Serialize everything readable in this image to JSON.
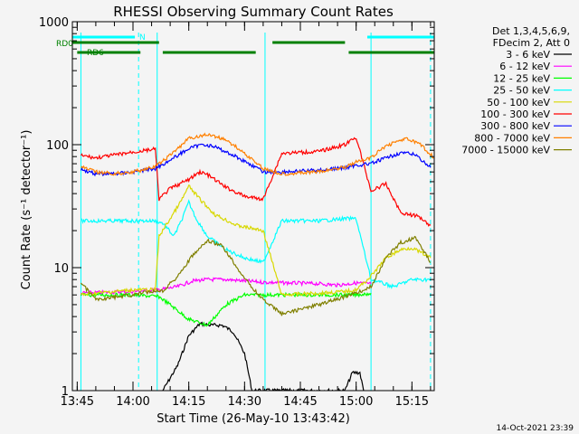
{
  "chart_data": {
    "type": "line",
    "title": "RHESSI Observing Summary Count Rates",
    "xlabel": "Start Time (26-May-10 13:43:42)",
    "ylabel": "Count Rate (s⁻¹ detector⁻¹)",
    "y_scale": "log",
    "ylim": [
      1,
      1000
    ],
    "xlim": [
      "13:43:42",
      "15:21:00"
    ],
    "x_ticks": [
      "13:45",
      "14:00",
      "14:15",
      "14:30",
      "14:45",
      "15:00",
      "15:15"
    ],
    "y_ticks": [
      "1",
      "10",
      "100",
      "1000"
    ],
    "legend_header": [
      "Det 1,3,4,5,6,9,",
      "FDecim 2, Att 0"
    ],
    "legend_position": "right",
    "footer_date": "14-Oct-2021 23:39",
    "flags": [
      {
        "label": "N",
        "color": "#00ffff",
        "segments": [
          [
            "13:43:42",
            "14:00:30"
          ],
          [
            "15:03:00",
            "15:21:00"
          ]
        ]
      },
      {
        "label": "RD0",
        "color": "#008000",
        "segments": [
          [
            "13:43:42",
            "14:07:00"
          ],
          [
            "14:37:30",
            "14:57:00"
          ]
        ]
      },
      {
        "label": "RD6",
        "color": "#008000",
        "segments": [
          [
            "13:45:00",
            "14:02:00"
          ],
          [
            "14:08:00",
            "14:33:00"
          ],
          [
            "14:58:00",
            "15:21:00"
          ]
        ]
      }
    ],
    "vertical_markers": {
      "solid": [
        "13:46:00",
        "14:06:30",
        "14:35:30",
        "15:04:00"
      ],
      "dashed": [
        "14:01:30",
        "15:20:00"
      ]
    },
    "series": [
      {
        "name": "3 - 6 keV",
        "color": "#000000",
        "x": [
          "14:08",
          "14:12",
          "14:15",
          "14:18",
          "14:21",
          "14:24",
          "14:27",
          "14:30",
          "14:32",
          "14:57",
          "14:59",
          "15:01",
          "15:02"
        ],
        "y": [
          1,
          1.6,
          2.8,
          3.5,
          3.4,
          3.4,
          3.0,
          2.0,
          1,
          1,
          1.4,
          1.4,
          1
        ]
      },
      {
        "name": "6 - 12 keV",
        "color": "#ff00ff",
        "x": [
          "13:46",
          "14:00",
          "14:07",
          "14:12",
          "14:16",
          "14:20",
          "14:25",
          "14:30",
          "14:35",
          "14:50",
          "14:55",
          "15:00",
          "15:04"
        ],
        "y": [
          6.2,
          6.4,
          6.6,
          7.0,
          7.8,
          8.0,
          8.0,
          7.8,
          7.6,
          7.4,
          7.2,
          7.5,
          7.4
        ]
      },
      {
        "name": "12 - 25 keV",
        "color": "#00ff00",
        "x": [
          "13:46",
          "14:00",
          "14:07",
          "14:10",
          "14:15",
          "14:20",
          "14:25",
          "14:30",
          "14:35",
          "14:45",
          "14:55",
          "15:00",
          "15:04"
        ],
        "y": [
          6.0,
          6.0,
          5.8,
          5.0,
          3.8,
          3.4,
          5.0,
          6.0,
          6.0,
          6.0,
          6.0,
          6.0,
          6.2
        ]
      },
      {
        "name": "25 - 50 keV",
        "color": "#00ffff",
        "x": [
          "13:46",
          "13:50",
          "14:00",
          "14:06",
          "14:08",
          "14:11",
          "14:13",
          "14:15",
          "14:17",
          "14:20",
          "14:25",
          "14:30",
          "14:35",
          "14:40",
          "14:50",
          "14:57",
          "15:00",
          "15:04",
          "15:10",
          "15:15",
          "15:20"
        ],
        "y": [
          24,
          24,
          24,
          24,
          23,
          18,
          24,
          34,
          25,
          18,
          14,
          12,
          11,
          24,
          24,
          25,
          25,
          8,
          7,
          8,
          8
        ]
      },
      {
        "name": "50 - 100 keV",
        "color": "#d8d800",
        "x": [
          "13:46",
          "13:50",
          "14:00",
          "14:06",
          "14:07",
          "14:10",
          "14:13",
          "14:15",
          "14:18",
          "14:22",
          "14:28",
          "14:35",
          "14:40",
          "14:50",
          "14:57",
          "15:00",
          "15:04",
          "15:08",
          "15:12",
          "15:15",
          "15:20"
        ],
        "y": [
          6.0,
          6.2,
          6.6,
          6.6,
          18,
          25,
          35,
          46,
          36,
          27,
          22,
          20,
          6.0,
          6.2,
          6.4,
          6.6,
          8.5,
          12,
          14,
          14.5,
          12
        ]
      },
      {
        "name": "100 - 300 keV",
        "color": "#ff0000",
        "x": [
          "13:46",
          "13:50",
          "14:00",
          "14:06",
          "14:07",
          "14:10",
          "14:15",
          "14:18",
          "14:20",
          "14:25",
          "14:30",
          "14:35",
          "14:40",
          "14:50",
          "14:57",
          "15:00",
          "15:04",
          "15:08",
          "15:12",
          "15:17",
          "15:20"
        ],
        "y": [
          82,
          78,
          87,
          92,
          36,
          44,
          52,
          60,
          57,
          45,
          38,
          36,
          85,
          88,
          100,
          115,
          42,
          48,
          28,
          26,
          22
        ]
      },
      {
        "name": "300 - 800 keV",
        "color": "#0000ff",
        "x": [
          "13:46",
          "13:50",
          "13:55",
          "14:00",
          "14:06",
          "14:10",
          "14:15",
          "14:19",
          "14:22",
          "14:27",
          "14:32",
          "14:35",
          "14:40",
          "14:50",
          "14:57",
          "15:00",
          "15:04",
          "15:08",
          "15:12",
          "15:16",
          "15:20"
        ],
        "y": [
          63,
          58,
          58,
          60,
          64,
          75,
          93,
          101,
          96,
          82,
          68,
          60,
          60,
          62,
          65,
          68,
          70,
          78,
          86,
          83,
          65
        ]
      },
      {
        "name": "800 - 7000 keV",
        "color": "#ff8000",
        "x": [
          "13:46",
          "13:50",
          "13:55",
          "14:00",
          "14:06",
          "14:10",
          "14:15",
          "14:20",
          "14:25",
          "14:30",
          "14:35",
          "14:40",
          "14:50",
          "14:57",
          "15:00",
          "15:04",
          "15:08",
          "15:13",
          "15:17",
          "15:21"
        ],
        "y": [
          66,
          60,
          58,
          60,
          66,
          82,
          112,
          121,
          110,
          85,
          64,
          58,
          60,
          66,
          72,
          78,
          98,
          112,
          102,
          78
        ]
      },
      {
        "name": "7000 - 15000 keV",
        "color": "#808000",
        "x": [
          "13:46",
          "13:50",
          "14:00",
          "14:06",
          "14:08",
          "14:12",
          "14:16",
          "14:20",
          "14:24",
          "14:28",
          "14:31",
          "14:35",
          "14:40",
          "14:50",
          "14:57",
          "15:00",
          "15:04",
          "15:08",
          "15:12",
          "15:16",
          "15:20"
        ],
        "y": [
          7.5,
          5.5,
          6.0,
          6.5,
          6.5,
          8.5,
          12.5,
          16.5,
          15,
          10,
          7.5,
          5.5,
          4.2,
          5.0,
          5.8,
          6.2,
          7.0,
          12,
          16,
          17.5,
          11
        ]
      }
    ]
  }
}
